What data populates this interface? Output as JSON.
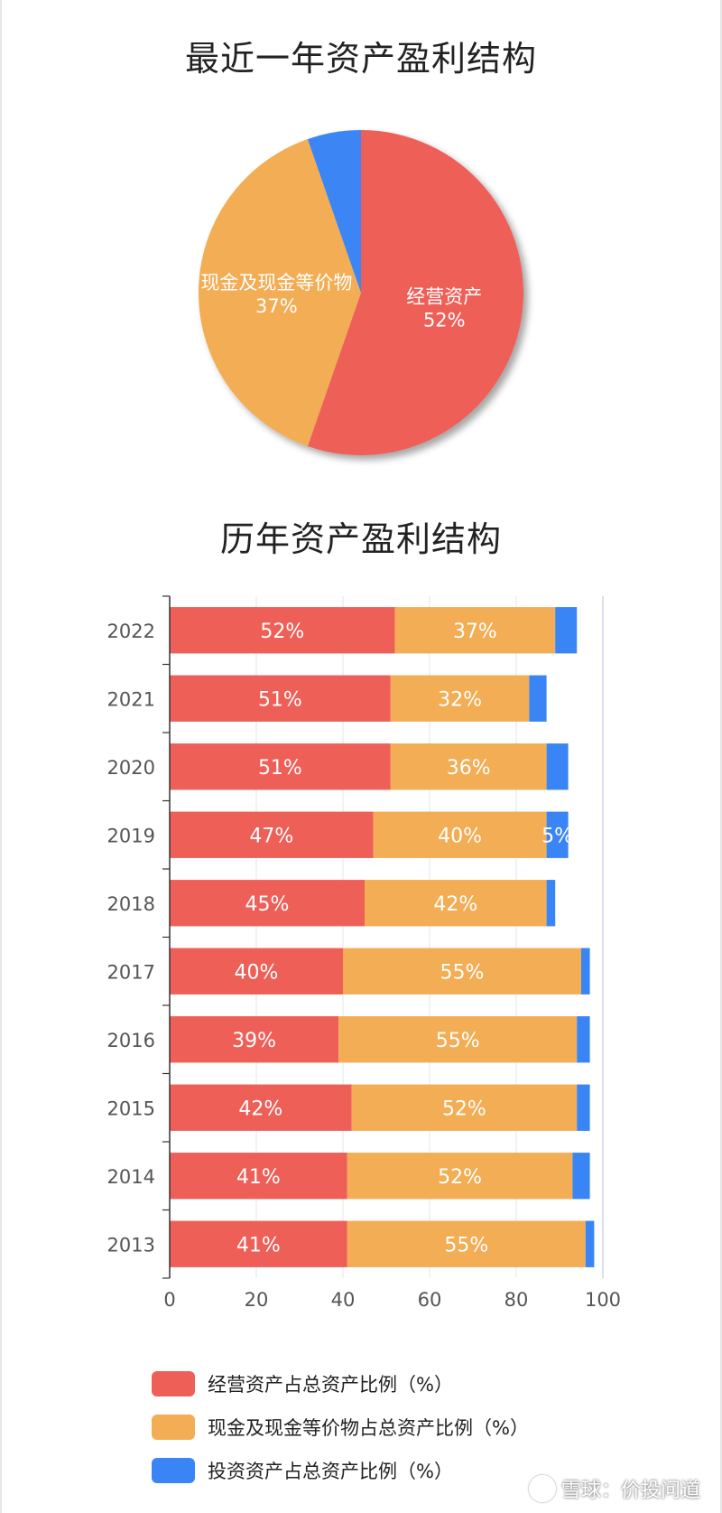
{
  "pie_title": "最近一年资产盈利结构",
  "bar_title": "历年资产盈利结构",
  "colors": {
    "operating": "#EE5F58",
    "cash": "#F2AD55",
    "investment": "#3A85F5"
  },
  "legend": [
    {
      "label": "经营资产占总资产比例（%）",
      "color_key": "operating"
    },
    {
      "label": "现金及现金等价物占总资产比例（%）",
      "color_key": "cash"
    },
    {
      "label": "投资资产占总资产比例（%）",
      "color_key": "investment"
    }
  ],
  "watermark": "雪球：价投问道",
  "chart_data": [
    {
      "type": "pie",
      "title": "最近一年资产盈利结构",
      "slices": [
        {
          "label": "经营资产",
          "value": 52,
          "data_label": "52%",
          "color_key": "operating"
        },
        {
          "label": "现金及现金等价物",
          "value": 37,
          "data_label": "37%",
          "color_key": "cash"
        },
        {
          "label": "投资资产",
          "value": 5,
          "data_label": "",
          "color_key": "investment"
        }
      ]
    },
    {
      "type": "bar",
      "orientation": "horizontal",
      "stacked": true,
      "title": "历年资产盈利结构",
      "categories": [
        "2022",
        "2021",
        "2020",
        "2019",
        "2018",
        "2017",
        "2016",
        "2015",
        "2014",
        "2013"
      ],
      "series": [
        {
          "name": "经营资产占总资产比例（%）",
          "color_key": "operating",
          "values": [
            52,
            51,
            51,
            47,
            45,
            40,
            39,
            42,
            41,
            41
          ],
          "labels": [
            "52%",
            "51%",
            "51%",
            "47%",
            "45%",
            "40%",
            "39%",
            "42%",
            "41%",
            "41%"
          ]
        },
        {
          "name": "现金及现金等价物占总资产比例（%）",
          "color_key": "cash",
          "values": [
            37,
            32,
            36,
            40,
            42,
            55,
            55,
            52,
            52,
            55
          ],
          "labels": [
            "37%",
            "32%",
            "36%",
            "40%",
            "42%",
            "55%",
            "55%",
            "52%",
            "52%",
            "55%"
          ]
        },
        {
          "name": "投资资产占总资产比例（%）",
          "color_key": "investment",
          "values": [
            5,
            4,
            5,
            5,
            2,
            2,
            3,
            3,
            4,
            2
          ],
          "labels": [
            "",
            "",
            "",
            "5%",
            "",
            "",
            "",
            "",
            "",
            ""
          ]
        }
      ],
      "xlim": [
        0,
        100
      ],
      "xticks": [
        "0",
        "20",
        "40",
        "60",
        "80",
        "100"
      ],
      "grid": true,
      "legend_position": "bottom"
    }
  ]
}
